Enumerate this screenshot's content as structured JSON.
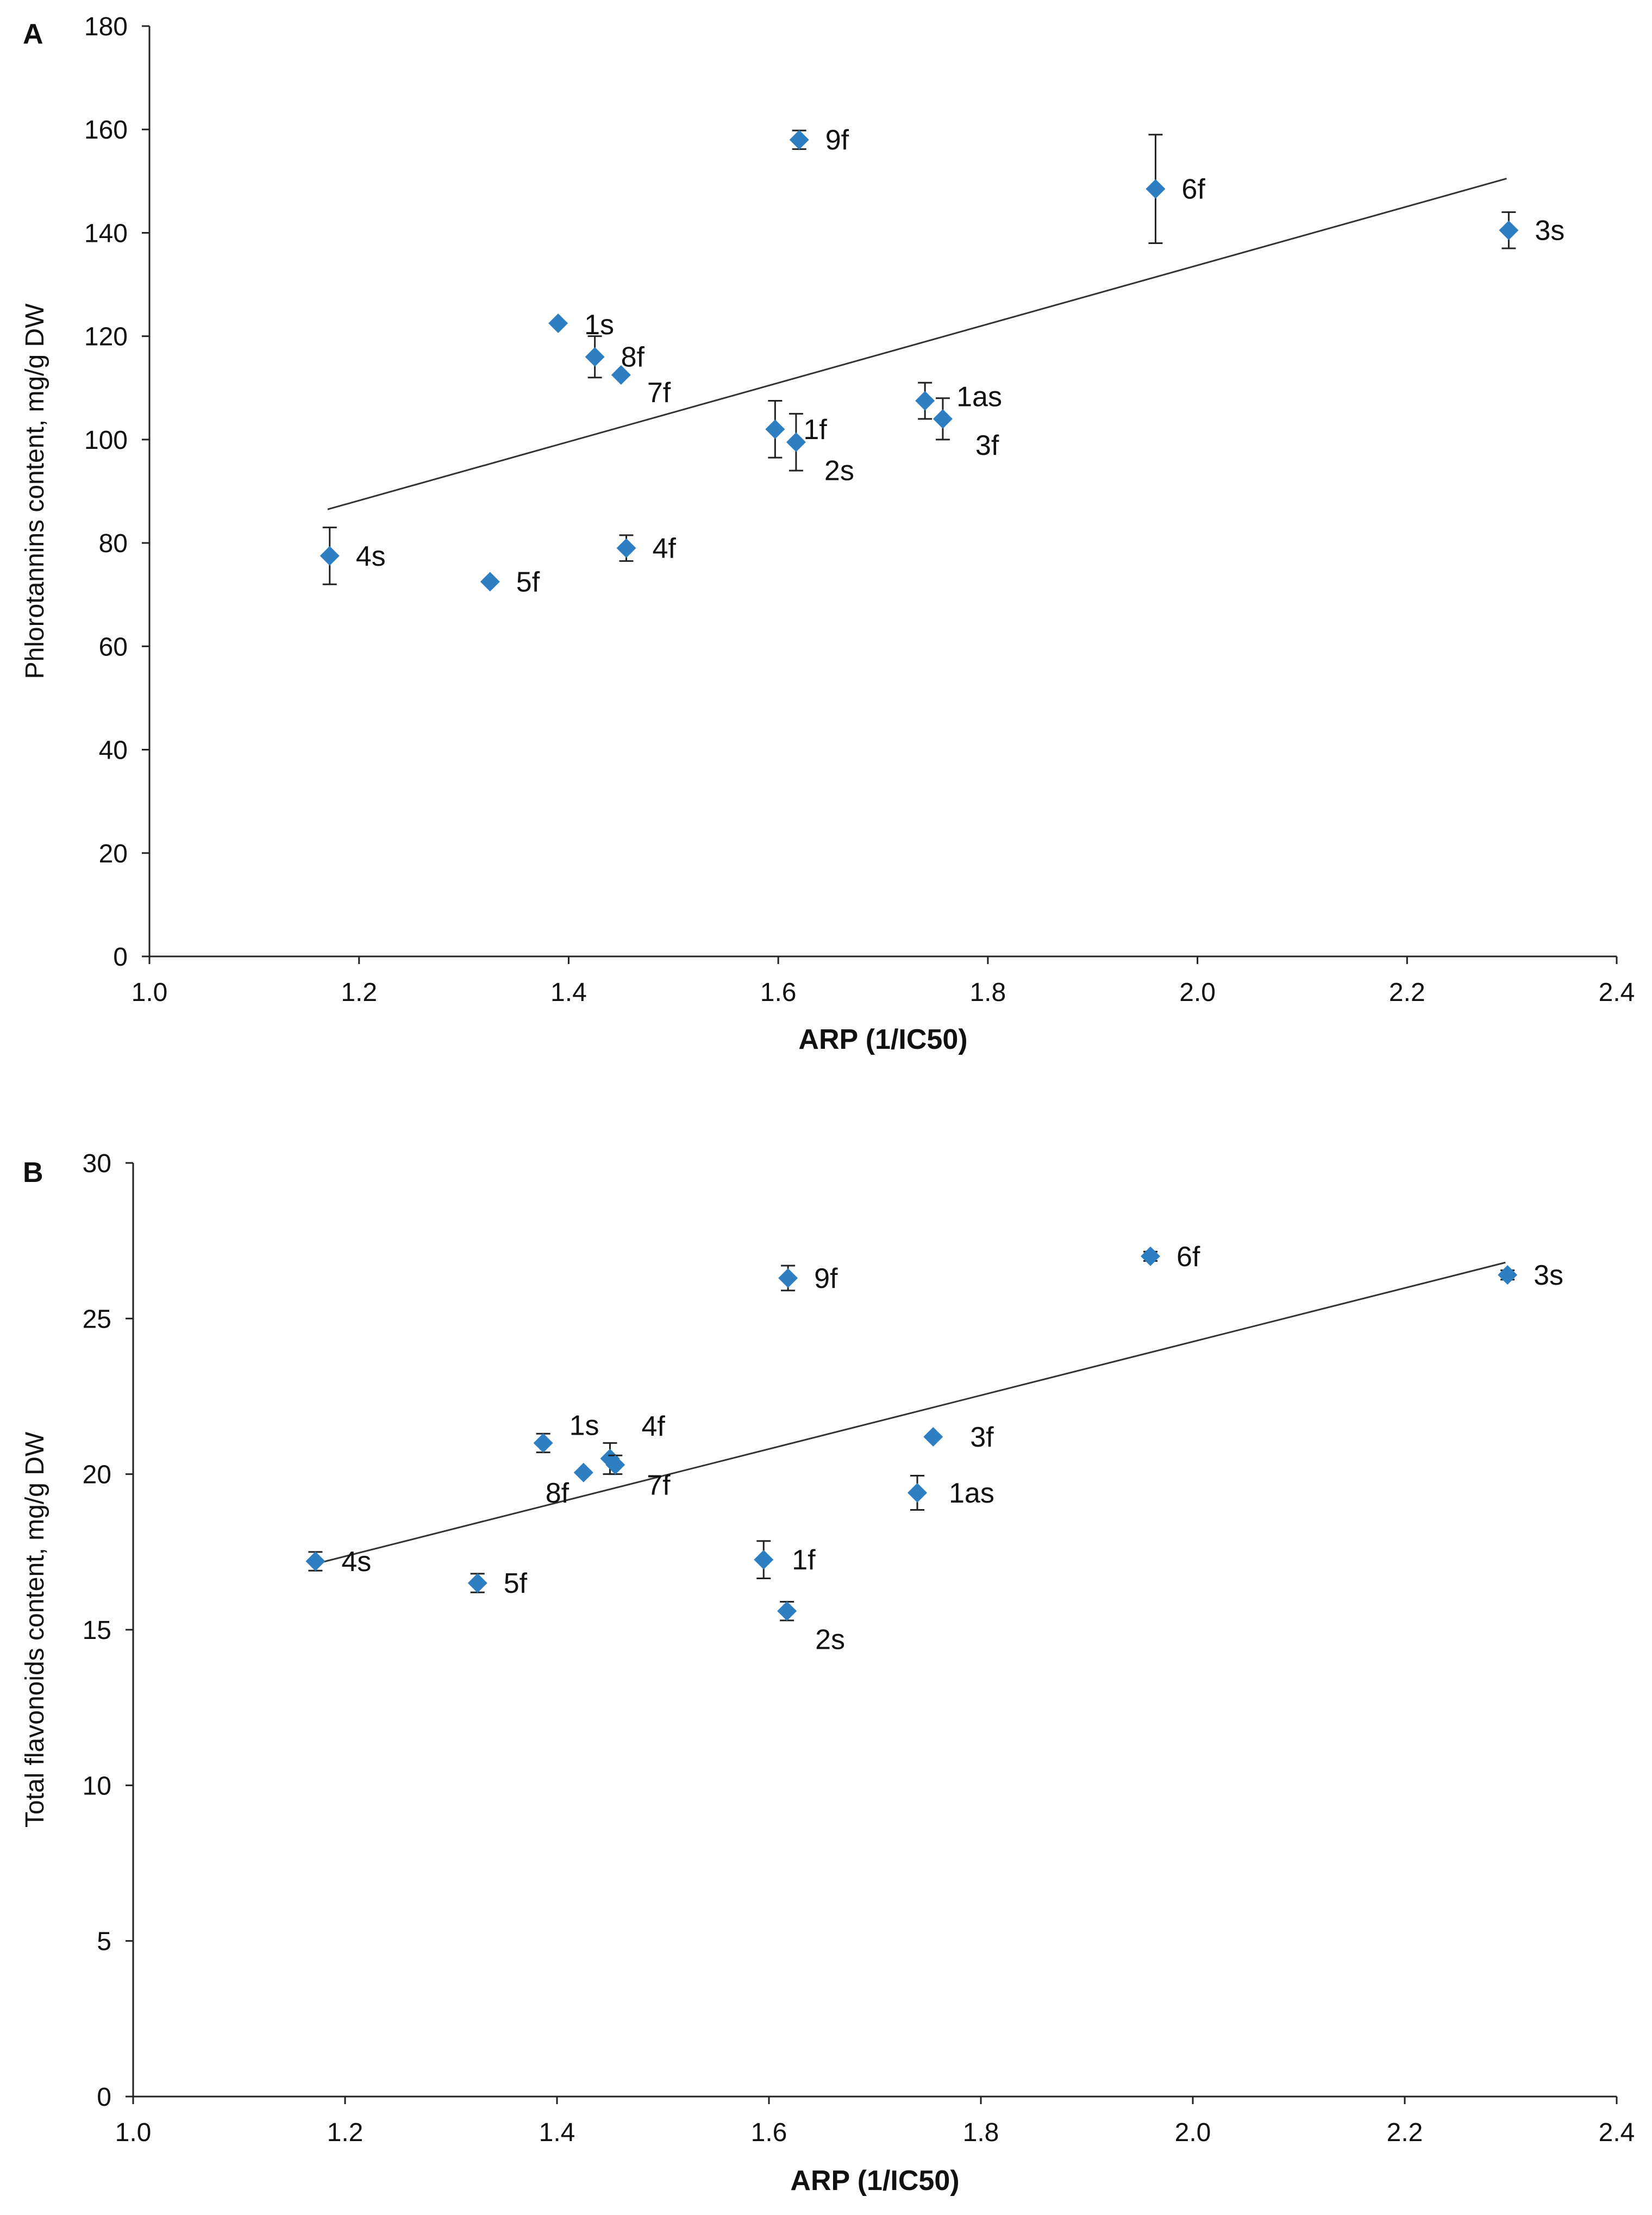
{
  "chart_data": [
    {
      "type": "scatter",
      "panel_label": "A",
      "xlabel": "ARP (1/IC50)",
      "ylabel": "Phlorotannins content, mg/g DW",
      "xlim": [
        1.0,
        2.4
      ],
      "ylim": [
        0,
        180
      ],
      "x_ticks": [
        "1.0",
        "1.2",
        "1.4",
        "1.6",
        "1.8",
        "2.0",
        "2.2",
        "2.4"
      ],
      "y_ticks": [
        "0",
        "20",
        "40",
        "60",
        "80",
        "100",
        "120",
        "140",
        "160",
        "180"
      ],
      "marker_color": "#2e7fc2",
      "trendline": {
        "x": [
          1.17,
          2.295
        ],
        "y": [
          86.5,
          150.5
        ]
      },
      "points": [
        {
          "label": "4s",
          "x": 1.172,
          "y": 77.5,
          "err": 5.5
        },
        {
          "label": "5f",
          "x": 1.325,
          "y": 72.5,
          "err": 0
        },
        {
          "label": "1s",
          "x": 1.39,
          "y": 122.5,
          "err": 0
        },
        {
          "label": "8f",
          "x": 1.425,
          "y": 116.0,
          "err": 4.0
        },
        {
          "label": "7f",
          "x": 1.45,
          "y": 112.5,
          "err": 0
        },
        {
          "label": "4f",
          "x": 1.455,
          "y": 79.0,
          "err": 2.5
        },
        {
          "label": "1f",
          "x": 1.597,
          "y": 102.0,
          "err": 5.5
        },
        {
          "label": "2s",
          "x": 1.617,
          "y": 99.5,
          "err": 5.5
        },
        {
          "label": "9f",
          "x": 1.62,
          "y": 158.0,
          "err": 1.8
        },
        {
          "label": "1as",
          "x": 1.74,
          "y": 107.5,
          "err": 3.5
        },
        {
          "label": "3f",
          "x": 1.757,
          "y": 104.0,
          "err": 4.0
        },
        {
          "label": "6f",
          "x": 1.96,
          "y": 148.5,
          "err": 10.5
        },
        {
          "label": "3s",
          "x": 2.297,
          "y": 140.5,
          "err": 3.5
        }
      ]
    },
    {
      "type": "scatter",
      "panel_label": "B",
      "xlabel": "ARP (1/IC50)",
      "ylabel": "Total flavonoids content, mg/g DW",
      "xlim": [
        1.0,
        2.4
      ],
      "ylim": [
        0,
        30
      ],
      "x_ticks": [
        "1.0",
        "1.2",
        "1.4",
        "1.6",
        "1.8",
        "2.0",
        "2.2",
        "2.4"
      ],
      "y_ticks": [
        "0",
        "5",
        "10",
        "15",
        "20",
        "25",
        "30"
      ],
      "marker_color": "#2e7fc2",
      "trendline": {
        "x": [
          1.17,
          2.295
        ],
        "y": [
          17.1,
          26.8
        ]
      },
      "points": [
        {
          "label": "4s",
          "x": 1.172,
          "y": 17.2,
          "err": 0.3
        },
        {
          "label": "5f",
          "x": 1.325,
          "y": 16.5,
          "err": 0.3
        },
        {
          "label": "1s",
          "x": 1.387,
          "y": 21.0,
          "err": 0.3
        },
        {
          "label": "8f",
          "x": 1.425,
          "y": 20.05,
          "err": 0
        },
        {
          "label": "4f",
          "x": 1.45,
          "y": 20.5,
          "err": 0.5
        },
        {
          "label": "7f",
          "x": 1.455,
          "y": 20.3,
          "err": 0.3
        },
        {
          "label": "1f",
          "x": 1.595,
          "y": 17.25,
          "err": 0.6
        },
        {
          "label": "2s",
          "x": 1.617,
          "y": 15.6,
          "err": 0.3
        },
        {
          "label": "9f",
          "x": 1.618,
          "y": 26.3,
          "err": 0.4
        },
        {
          "label": "1as",
          "x": 1.74,
          "y": 19.4,
          "err": 0.55
        },
        {
          "label": "3f",
          "x": 1.755,
          "y": 21.2,
          "err": 0
        },
        {
          "label": "6f",
          "x": 1.96,
          "y": 27.0,
          "err": 0.15
        },
        {
          "label": "3s",
          "x": 2.297,
          "y": 26.4,
          "err": 0.15
        }
      ]
    }
  ]
}
